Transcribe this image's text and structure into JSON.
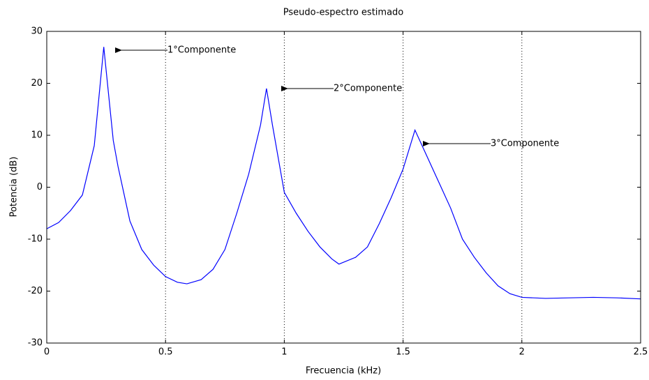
{
  "chart_data": {
    "type": "line",
    "title": "Pseudo-espectro estimado",
    "x_label": "Frecuencia (kHz)",
    "y_label": "Potencia (dB)",
    "xlim": [
      0,
      2.5
    ],
    "ylim": [
      -30,
      30
    ],
    "xticks": [
      0,
      0.5,
      1,
      1.5,
      2,
      2.5
    ],
    "yticks": [
      -30,
      -20,
      -10,
      0,
      10,
      20,
      30
    ],
    "x_grid": true,
    "series": [
      {
        "color": "#0000ff",
        "x": [
          0,
          0.05,
          0.1,
          0.15,
          0.2,
          0.24,
          0.28,
          0.3,
          0.35,
          0.4,
          0.45,
          0.5,
          0.55,
          0.59,
          0.65,
          0.7,
          0.75,
          0.8,
          0.85,
          0.9,
          0.925,
          0.95,
          1.0,
          1.05,
          1.1,
          1.15,
          1.2,
          1.23,
          1.3,
          1.35,
          1.4,
          1.45,
          1.5,
          1.55,
          1.6,
          1.65,
          1.7,
          1.75,
          1.8,
          1.85,
          1.9,
          1.95,
          2.0,
          2.1,
          2.2,
          2.3,
          2.4,
          2.5
        ],
        "values": [
          -8,
          -6.8,
          -4.5,
          -1.5,
          8,
          27,
          9,
          4,
          -6.5,
          -12,
          -15,
          -17.2,
          -18.3,
          -18.6,
          -17.8,
          -15.8,
          -12,
          -5,
          2.5,
          12,
          19,
          12,
          -1,
          -5,
          -8.5,
          -11.5,
          -13.8,
          -14.8,
          -13.5,
          -11.5,
          -7,
          -2,
          3.5,
          11,
          6,
          1,
          -4,
          -10,
          -13.5,
          -16.5,
          -19,
          -20.5,
          -21.2,
          -21.4,
          -21.3,
          -21.2,
          -21.3,
          -21.5
        ]
      }
    ],
    "annotations": [
      "1°Componente",
      "2°Componente",
      "3°Componente"
    ]
  }
}
